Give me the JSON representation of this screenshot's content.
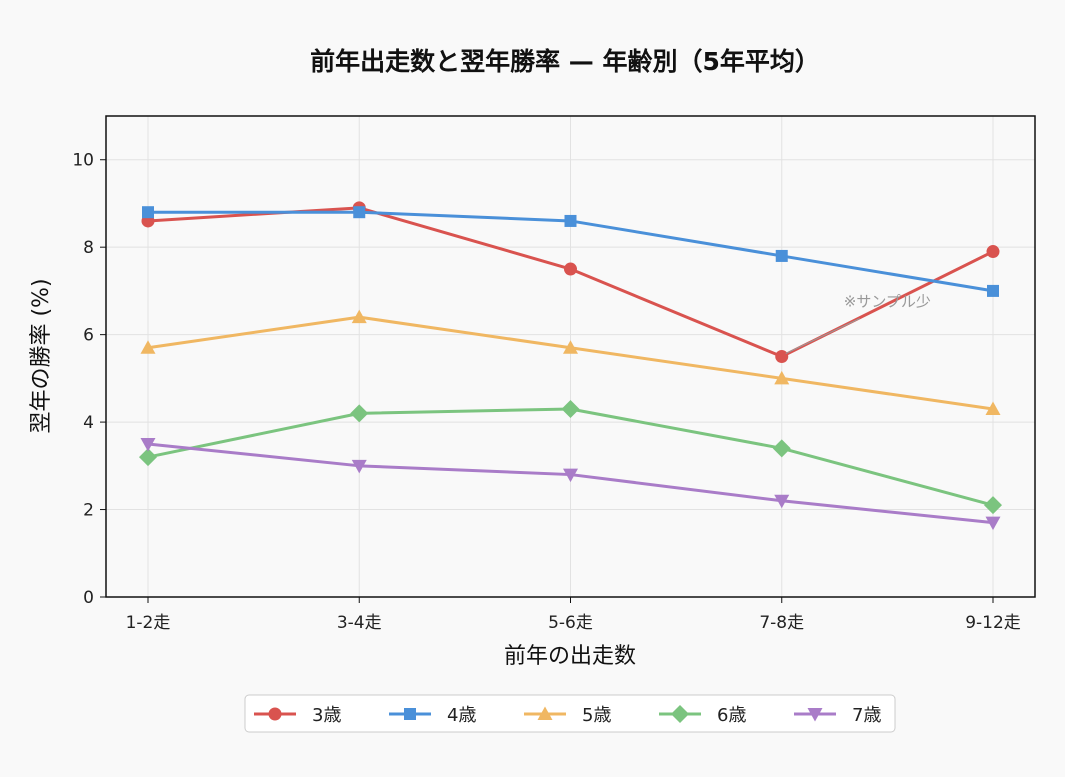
{
  "chart_data": {
    "type": "line",
    "title": "前年出走数と翌年勝率 — 年齢別（5年平均）",
    "xlabel": "前年の出走数",
    "ylabel": "翌年の勝率 (%)",
    "categories": [
      "1-2走",
      "3-4走",
      "5-6走",
      "7-8走",
      "9-12走"
    ],
    "ylim": [
      0,
      11
    ],
    "yticks": [
      0,
      2,
      4,
      6,
      8,
      10
    ],
    "grid": true,
    "legend_position": "bottom-center",
    "series": [
      {
        "name": "3歳",
        "color": "#d9534f",
        "marker": "circle",
        "values": [
          8.6,
          8.9,
          7.5,
          5.5,
          7.9
        ]
      },
      {
        "name": "4歳",
        "color": "#4a90d9",
        "marker": "square",
        "values": [
          8.8,
          8.8,
          8.6,
          7.8,
          7.0
        ]
      },
      {
        "name": "5歳",
        "color": "#f0b762",
        "marker": "triangle-up",
        "values": [
          5.7,
          6.4,
          5.7,
          5.0,
          4.3
        ]
      },
      {
        "name": "6歳",
        "color": "#7bc47f",
        "marker": "diamond",
        "values": [
          3.2,
          4.2,
          4.3,
          3.4,
          2.1
        ]
      },
      {
        "name": "7歳",
        "color": "#a97cc8",
        "marker": "triangle-down",
        "values": [
          3.5,
          3.0,
          2.8,
          2.2,
          1.7
        ]
      }
    ],
    "annotations": [
      {
        "text": "※サンプル少",
        "series": "3歳",
        "category": "7-8走"
      }
    ]
  }
}
